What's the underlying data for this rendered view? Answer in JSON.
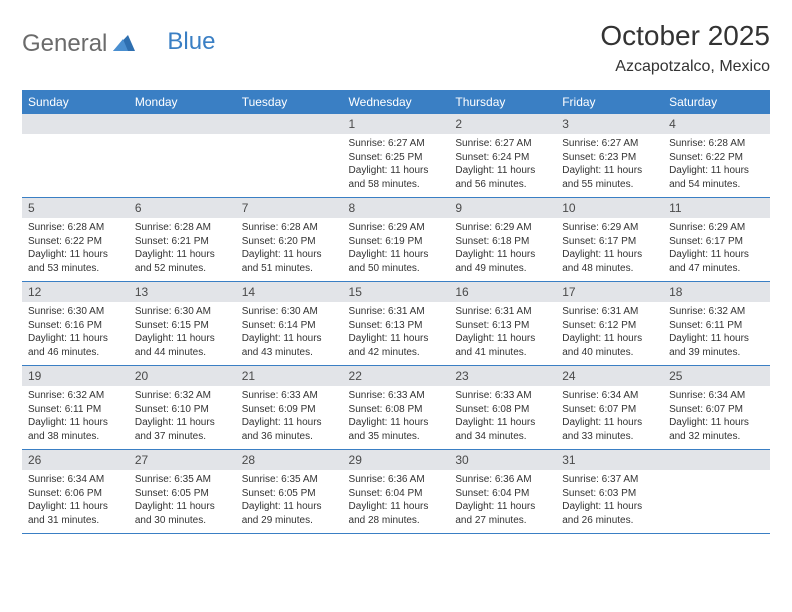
{
  "logo": {
    "text1": "General",
    "text2": "Blue"
  },
  "title": "October 2025",
  "location": "Azcapotzalco, Mexico",
  "colors": {
    "header_bg": "#3a7fc4",
    "header_text": "#ffffff",
    "daynum_bg": "#e2e4e8",
    "text": "#333333",
    "logo_gray": "#6b6b6b",
    "logo_blue": "#3a7fc4",
    "row_border": "#3a7fc4"
  },
  "weekdays": [
    "Sunday",
    "Monday",
    "Tuesday",
    "Wednesday",
    "Thursday",
    "Friday",
    "Saturday"
  ],
  "weeks": [
    [
      null,
      null,
      null,
      {
        "n": "1",
        "sr": "6:27 AM",
        "ss": "6:25 PM",
        "dl": "11 hours and 58 minutes."
      },
      {
        "n": "2",
        "sr": "6:27 AM",
        "ss": "6:24 PM",
        "dl": "11 hours and 56 minutes."
      },
      {
        "n": "3",
        "sr": "6:27 AM",
        "ss": "6:23 PM",
        "dl": "11 hours and 55 minutes."
      },
      {
        "n": "4",
        "sr": "6:28 AM",
        "ss": "6:22 PM",
        "dl": "11 hours and 54 minutes."
      }
    ],
    [
      {
        "n": "5",
        "sr": "6:28 AM",
        "ss": "6:22 PM",
        "dl": "11 hours and 53 minutes."
      },
      {
        "n": "6",
        "sr": "6:28 AM",
        "ss": "6:21 PM",
        "dl": "11 hours and 52 minutes."
      },
      {
        "n": "7",
        "sr": "6:28 AM",
        "ss": "6:20 PM",
        "dl": "11 hours and 51 minutes."
      },
      {
        "n": "8",
        "sr": "6:29 AM",
        "ss": "6:19 PM",
        "dl": "11 hours and 50 minutes."
      },
      {
        "n": "9",
        "sr": "6:29 AM",
        "ss": "6:18 PM",
        "dl": "11 hours and 49 minutes."
      },
      {
        "n": "10",
        "sr": "6:29 AM",
        "ss": "6:17 PM",
        "dl": "11 hours and 48 minutes."
      },
      {
        "n": "11",
        "sr": "6:29 AM",
        "ss": "6:17 PM",
        "dl": "11 hours and 47 minutes."
      }
    ],
    [
      {
        "n": "12",
        "sr": "6:30 AM",
        "ss": "6:16 PM",
        "dl": "11 hours and 46 minutes."
      },
      {
        "n": "13",
        "sr": "6:30 AM",
        "ss": "6:15 PM",
        "dl": "11 hours and 44 minutes."
      },
      {
        "n": "14",
        "sr": "6:30 AM",
        "ss": "6:14 PM",
        "dl": "11 hours and 43 minutes."
      },
      {
        "n": "15",
        "sr": "6:31 AM",
        "ss": "6:13 PM",
        "dl": "11 hours and 42 minutes."
      },
      {
        "n": "16",
        "sr": "6:31 AM",
        "ss": "6:13 PM",
        "dl": "11 hours and 41 minutes."
      },
      {
        "n": "17",
        "sr": "6:31 AM",
        "ss": "6:12 PM",
        "dl": "11 hours and 40 minutes."
      },
      {
        "n": "18",
        "sr": "6:32 AM",
        "ss": "6:11 PM",
        "dl": "11 hours and 39 minutes."
      }
    ],
    [
      {
        "n": "19",
        "sr": "6:32 AM",
        "ss": "6:11 PM",
        "dl": "11 hours and 38 minutes."
      },
      {
        "n": "20",
        "sr": "6:32 AM",
        "ss": "6:10 PM",
        "dl": "11 hours and 37 minutes."
      },
      {
        "n": "21",
        "sr": "6:33 AM",
        "ss": "6:09 PM",
        "dl": "11 hours and 36 minutes."
      },
      {
        "n": "22",
        "sr": "6:33 AM",
        "ss": "6:08 PM",
        "dl": "11 hours and 35 minutes."
      },
      {
        "n": "23",
        "sr": "6:33 AM",
        "ss": "6:08 PM",
        "dl": "11 hours and 34 minutes."
      },
      {
        "n": "24",
        "sr": "6:34 AM",
        "ss": "6:07 PM",
        "dl": "11 hours and 33 minutes."
      },
      {
        "n": "25",
        "sr": "6:34 AM",
        "ss": "6:07 PM",
        "dl": "11 hours and 32 minutes."
      }
    ],
    [
      {
        "n": "26",
        "sr": "6:34 AM",
        "ss": "6:06 PM",
        "dl": "11 hours and 31 minutes."
      },
      {
        "n": "27",
        "sr": "6:35 AM",
        "ss": "6:05 PM",
        "dl": "11 hours and 30 minutes."
      },
      {
        "n": "28",
        "sr": "6:35 AM",
        "ss": "6:05 PM",
        "dl": "11 hours and 29 minutes."
      },
      {
        "n": "29",
        "sr": "6:36 AM",
        "ss": "6:04 PM",
        "dl": "11 hours and 28 minutes."
      },
      {
        "n": "30",
        "sr": "6:36 AM",
        "ss": "6:04 PM",
        "dl": "11 hours and 27 minutes."
      },
      {
        "n": "31",
        "sr": "6:37 AM",
        "ss": "6:03 PM",
        "dl": "11 hours and 26 minutes."
      },
      null
    ]
  ],
  "labels": {
    "sunrise": "Sunrise:",
    "sunset": "Sunset:",
    "daylight": "Daylight:"
  }
}
